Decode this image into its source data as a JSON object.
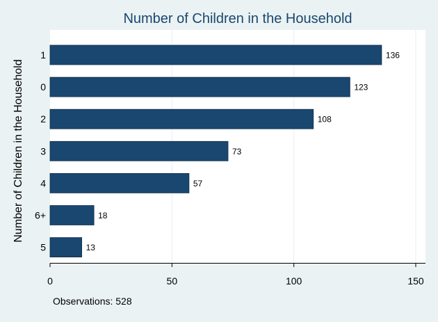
{
  "chart_data": {
    "type": "bar",
    "orientation": "horizontal",
    "title": "Number of Children in the Household",
    "xlabel": "",
    "ylabel": "Number of Children in the Household",
    "categories": [
      "1",
      "0",
      "2",
      "3",
      "4",
      "6+",
      "5"
    ],
    "values": [
      136,
      123,
      108,
      73,
      57,
      18,
      13
    ],
    "value_labels": [
      "136",
      "123",
      "108",
      "73",
      "57",
      "18",
      "13"
    ],
    "x_ticks": [
      0,
      50,
      100,
      150
    ],
    "x_tick_labels": [
      "0",
      "50",
      "100",
      "150"
    ],
    "xlim": [
      0,
      150
    ],
    "grid": "vertical",
    "legend": "none",
    "note": "Observations: 528"
  },
  "colors": {
    "background": "#eaf2f3",
    "plot_area": "#ffffff",
    "bar": "#1a476f",
    "bar_outline": "#0f2f4c",
    "title": "#1a476f",
    "grid": "#eaf2f3",
    "text": "#000000"
  }
}
